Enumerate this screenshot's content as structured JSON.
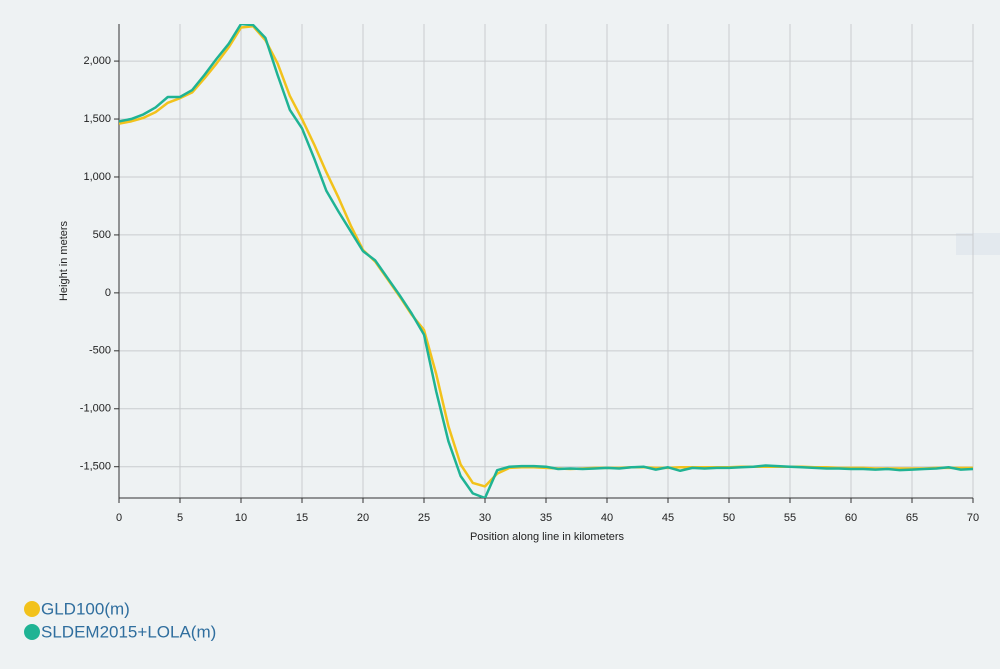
{
  "chart_data": {
    "type": "line",
    "xlabel": "Position along line in kilometers",
    "ylabel": "Height in meters",
    "x": [
      0,
      1,
      2,
      3,
      4,
      5,
      6,
      7,
      8,
      9,
      10,
      11,
      12,
      13,
      14,
      15,
      16,
      17,
      18,
      19,
      20,
      21,
      22,
      23,
      24,
      25,
      26,
      27,
      28,
      29,
      30,
      31,
      32,
      33,
      34,
      35,
      36,
      37,
      38,
      39,
      40,
      41,
      42,
      43,
      44,
      45,
      46,
      47,
      48,
      49,
      50,
      51,
      52,
      53,
      54,
      55,
      56,
      57,
      58,
      59,
      60,
      61,
      62,
      63,
      64,
      65,
      66,
      67,
      68,
      69,
      70
    ],
    "series": [
      {
        "name": "GLD100(m)",
        "color": "#f2c21b",
        "values": [
          1460,
          1480,
          1510,
          1560,
          1640,
          1680,
          1730,
          1850,
          1980,
          2120,
          2290,
          2300,
          2180,
          1980,
          1700,
          1500,
          1280,
          1040,
          820,
          580,
          370,
          270,
          120,
          -30,
          -190,
          -320,
          -700,
          -1150,
          -1480,
          -1640,
          -1670,
          -1560,
          -1510,
          -1505,
          -1505,
          -1510,
          -1515,
          -1520,
          -1515,
          -1510,
          -1510,
          -1510,
          -1505,
          -1505,
          -1510,
          -1510,
          -1505,
          -1505,
          -1505,
          -1505,
          -1505,
          -1500,
          -1500,
          -1500,
          -1500,
          -1500,
          -1500,
          -1505,
          -1505,
          -1510,
          -1510,
          -1510,
          -1515,
          -1515,
          -1515,
          -1515,
          -1515,
          -1510,
          -1510,
          -1510,
          -1510
        ]
      },
      {
        "name": "SLDEM2015+LOLA(m)",
        "color": "#1fb394",
        "values": [
          1480,
          1500,
          1540,
          1600,
          1690,
          1690,
          1750,
          1880,
          2020,
          2150,
          2320,
          2310,
          2200,
          1880,
          1580,
          1420,
          1160,
          880,
          700,
          530,
          360,
          280,
          130,
          -20,
          -180,
          -360,
          -850,
          -1280,
          -1580,
          -1730,
          -1770,
          -1530,
          -1500,
          -1495,
          -1495,
          -1500,
          -1520,
          -1515,
          -1520,
          -1515,
          -1510,
          -1515,
          -1505,
          -1500,
          -1525,
          -1505,
          -1535,
          -1510,
          -1515,
          -1510,
          -1510,
          -1505,
          -1500,
          -1490,
          -1495,
          -1500,
          -1505,
          -1510,
          -1515,
          -1515,
          -1520,
          -1520,
          -1525,
          -1520,
          -1530,
          -1525,
          -1520,
          -1515,
          -1505,
          -1525,
          -1520
        ]
      }
    ],
    "xlim": [
      0,
      70
    ],
    "xticks": [
      0,
      5,
      10,
      15,
      20,
      25,
      30,
      35,
      40,
      45,
      50,
      55,
      60,
      65,
      70
    ],
    "ylim": [
      -1770,
      2320
    ],
    "yticks": [
      {
        "value": -1500,
        "label": "-1,500"
      },
      {
        "value": -1000,
        "label": "-1,000"
      },
      -500,
      0,
      500,
      {
        "value": 1000,
        "label": "1,000"
      },
      {
        "value": 1500,
        "label": "1,500"
      },
      {
        "value": 2000,
        "label": "2,000"
      }
    ],
    "grid": true
  }
}
